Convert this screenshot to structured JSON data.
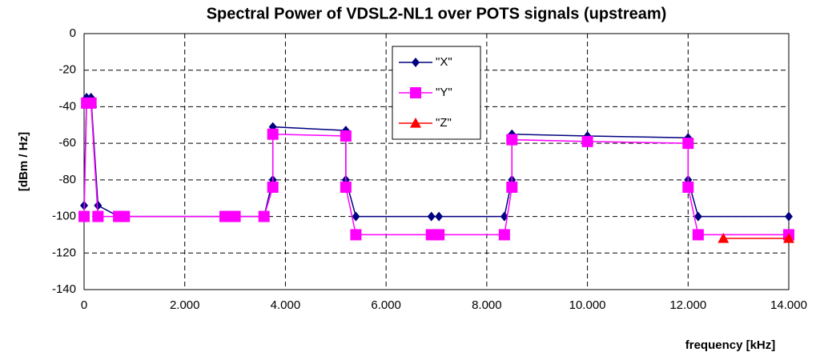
{
  "chart_data": {
    "type": "line",
    "title": "Spectral Power of VDSL2-NL1 over POTS signals (upstream)",
    "x_label": "frequency [kHz]",
    "y_label": "[dBm / Hz]",
    "xlim": [
      0,
      14000
    ],
    "ylim": [
      -140,
      0
    ],
    "xticks": [
      0,
      {
        "value": 2000,
        "label": "2.000"
      },
      {
        "value": 4000,
        "label": "4.000"
      },
      {
        "value": 6000,
        "label": "6.000"
      },
      {
        "value": 8000,
        "label": "8.000"
      },
      {
        "value": 10000,
        "label": "10.000"
      },
      {
        "value": 12000,
        "label": "12.000"
      },
      {
        "value": 14000,
        "label": "14.000"
      }
    ],
    "yticks": [
      -140,
      -120,
      -100,
      -80,
      -60,
      -40,
      -20,
      0
    ],
    "grid": true,
    "legend": "top-center",
    "series": [
      {
        "name": "\"X\"",
        "color": "#000080",
        "marker": "diamond",
        "x": [
          0,
          50,
          138,
          276,
          686,
          2900,
          3000,
          3575,
          3750,
          3750,
          5200,
          5200,
          5400,
          6900,
          7050,
          8350,
          8500,
          8500,
          10000,
          12000,
          12000,
          12200,
          14000
        ],
        "values": [
          -94,
          -35,
          -35,
          -94,
          -100,
          -100,
          -100,
          -100,
          -80,
          -51,
          -53,
          -80,
          -100,
          -100,
          -100,
          -100,
          -80,
          -55,
          -56,
          -57,
          -80,
          -100,
          -100
        ]
      },
      {
        "name": "\"Y\"",
        "color": "#ff00ff",
        "marker": "square",
        "x": [
          0,
          50,
          138,
          276,
          686,
          800,
          2800,
          3000,
          3575,
          3750,
          3750,
          5200,
          5200,
          5400,
          6900,
          7050,
          8350,
          8500,
          8500,
          10000,
          12000,
          12000,
          12200,
          14000
        ],
        "values": [
          -100,
          -38,
          -38,
          -100,
          -100,
          -100,
          -100,
          -100,
          -100,
          -84,
          -55,
          -56,
          -84,
          -110,
          -110,
          -110,
          -110,
          -84,
          -58,
          -59,
          -60,
          -84,
          -110,
          -110
        ]
      },
      {
        "name": "\"Z\"",
        "color": "#ff0000",
        "marker": "triangle",
        "x": [
          12700,
          14000
        ],
        "values": [
          -112,
          -112
        ]
      }
    ]
  }
}
